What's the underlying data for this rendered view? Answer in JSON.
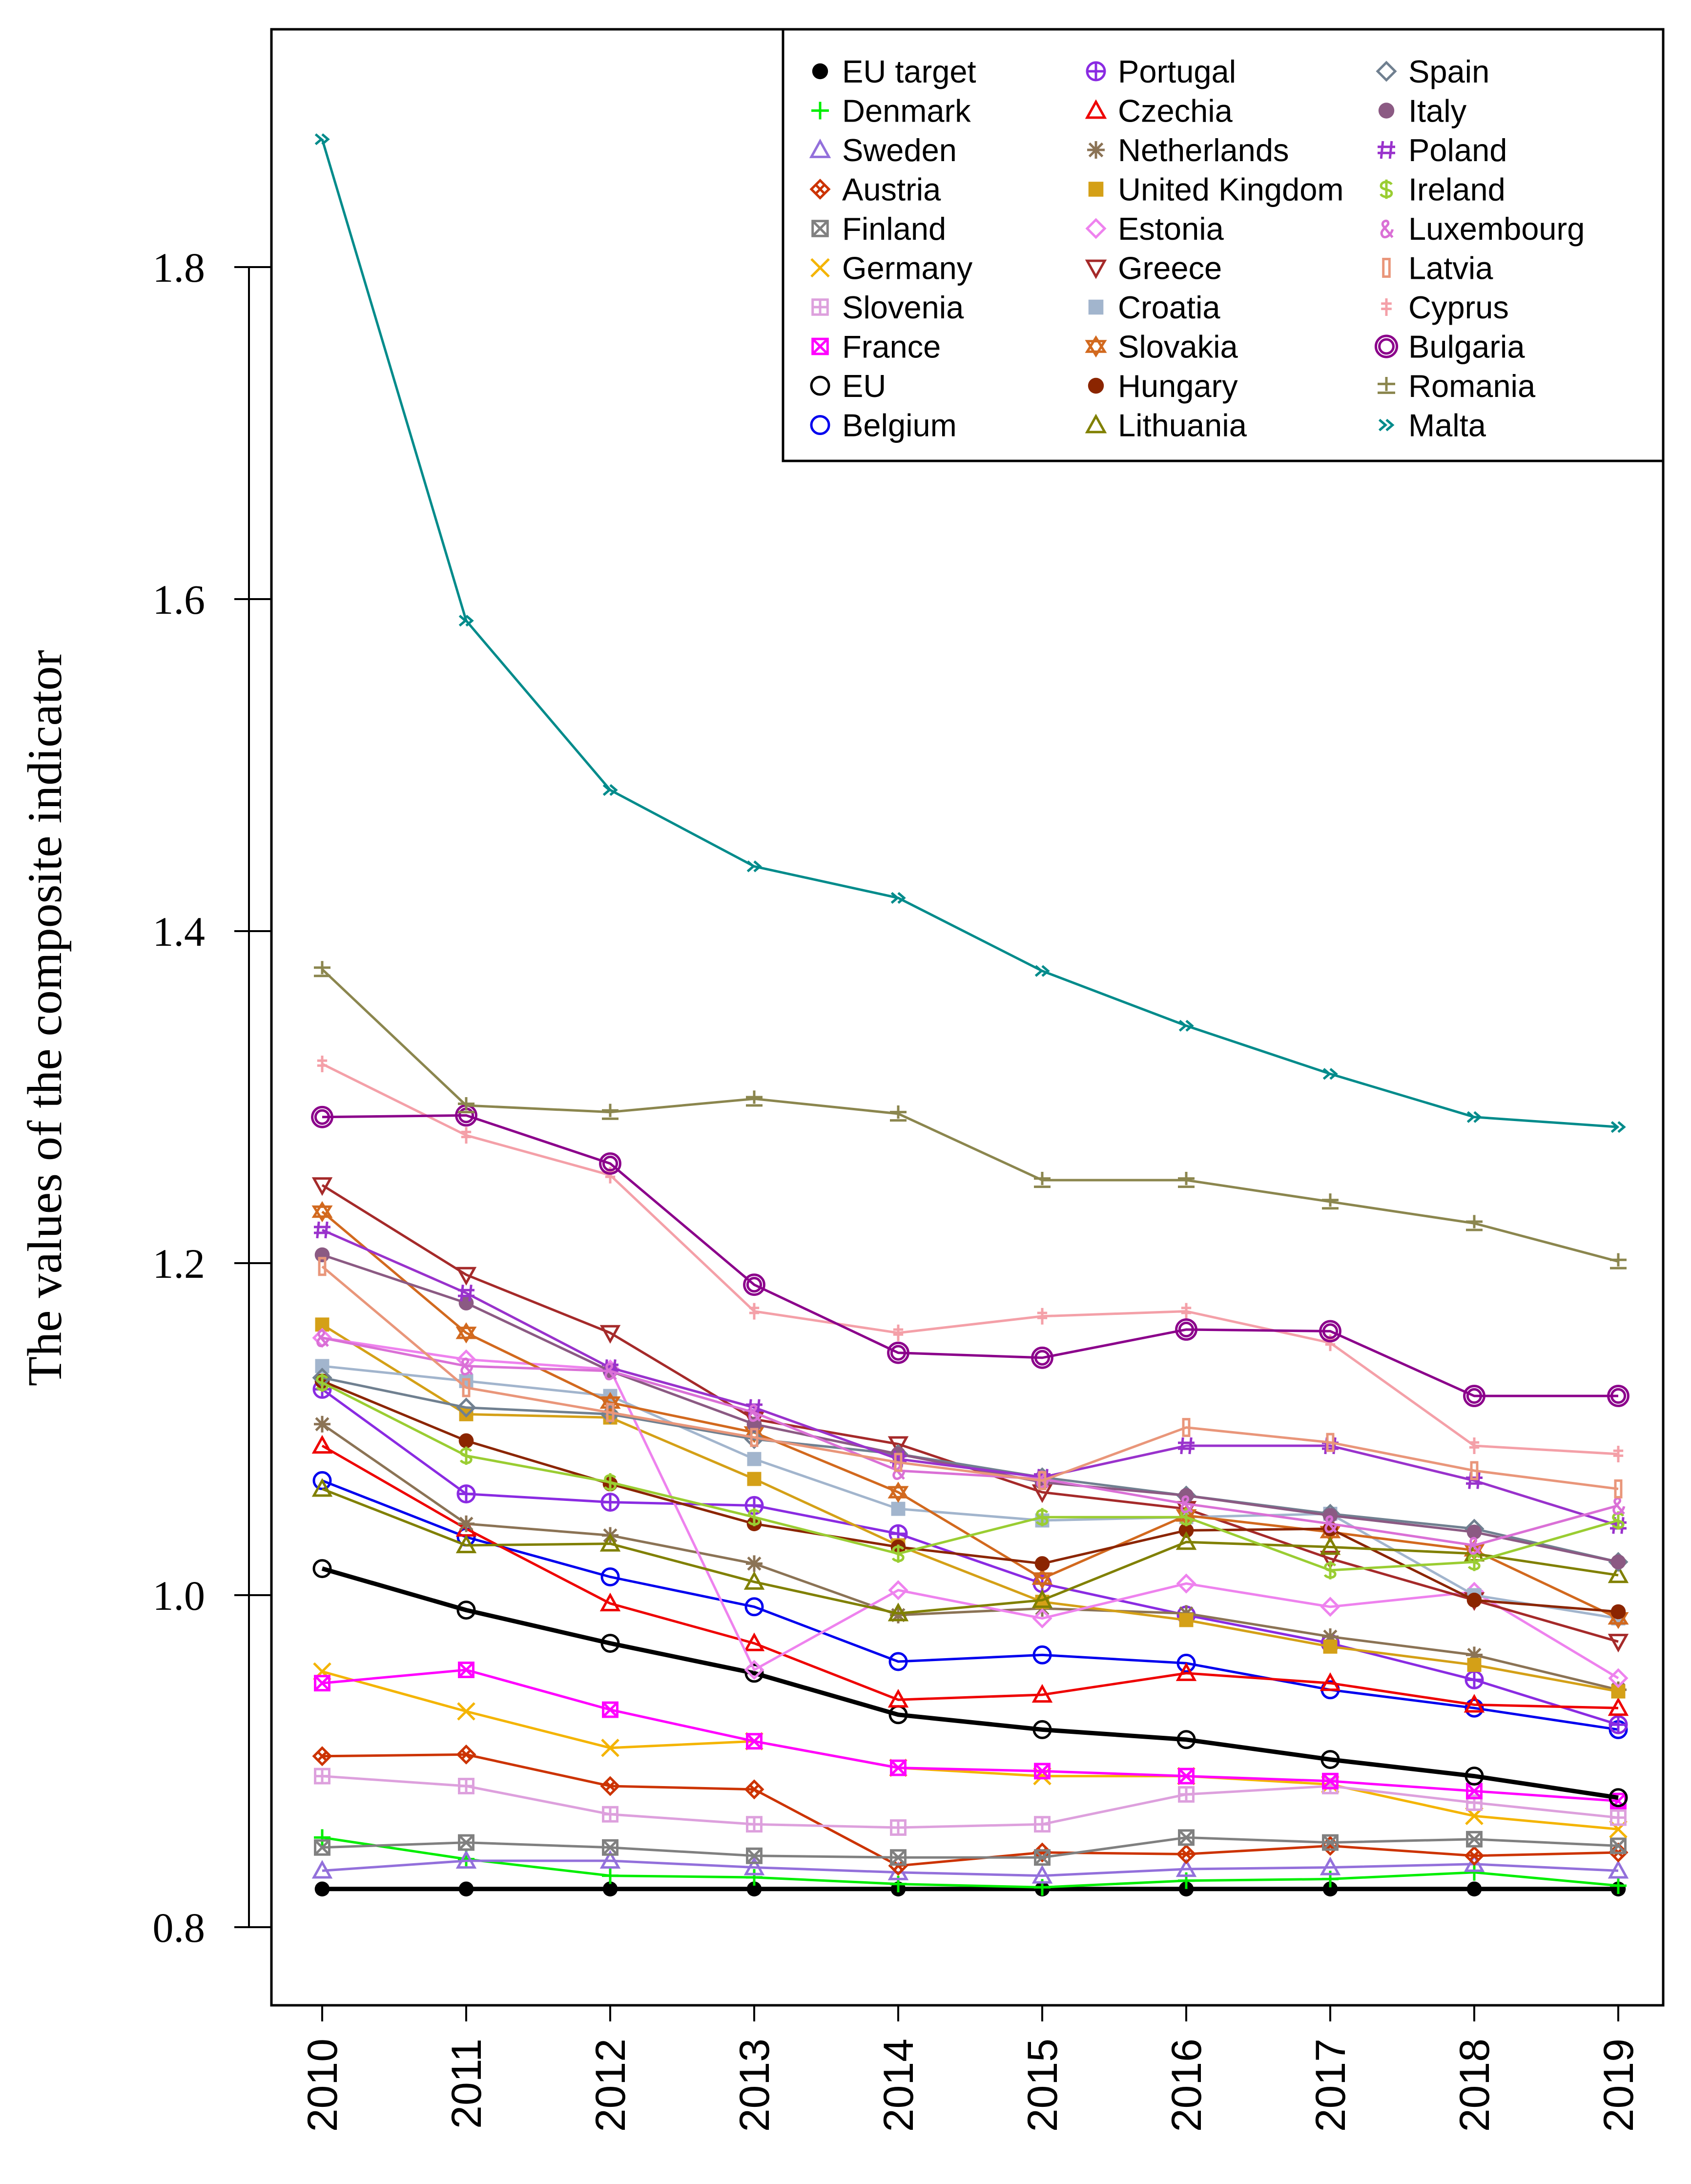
{
  "chart_data": {
    "type": "line",
    "ylabel": "The values of the composite indicator",
    "xlabel": "",
    "x": [
      2010,
      2011,
      2012,
      2013,
      2014,
      2015,
      2016,
      2017,
      2018,
      2019
    ],
    "ylim": [
      0.76,
      1.95
    ],
    "yticks": [
      "0.8",
      "1.0",
      "1.2",
      "1.4",
      "1.6",
      "1.8"
    ],
    "legend_position": "top-right",
    "series": [
      {
        "name": "EU target",
        "color": "#000000",
        "values": [
          0.823,
          0.823,
          0.823,
          0.823,
          0.823,
          0.823,
          0.823,
          0.823,
          0.823,
          0.823
        ]
      },
      {
        "name": "Denmark",
        "color": "#00ee00",
        "values": [
          0.854,
          0.841,
          0.831,
          0.83,
          0.826,
          0.824,
          0.828,
          0.829,
          0.833,
          0.825
        ]
      },
      {
        "name": "Sweden",
        "color": "#9370db",
        "values": [
          0.834,
          0.84,
          0.84,
          0.836,
          0.833,
          0.831,
          0.835,
          0.836,
          0.838,
          0.834
        ]
      },
      {
        "name": "Austria",
        "color": "#cc3300",
        "values": [
          0.903,
          0.904,
          0.885,
          0.883,
          0.837,
          0.845,
          0.844,
          0.849,
          0.843,
          0.845
        ]
      },
      {
        "name": "Finland",
        "color": "#808080",
        "values": [
          0.848,
          0.851,
          0.848,
          0.843,
          0.842,
          0.842,
          0.854,
          0.851,
          0.853,
          0.849
        ]
      },
      {
        "name": "Germany",
        "color": "#f4b400",
        "values": [
          0.954,
          0.93,
          0.908,
          0.912,
          0.896,
          0.891,
          0.891,
          0.886,
          0.867,
          0.859
        ]
      },
      {
        "name": "Slovenia",
        "color": "#dda0dd",
        "values": [
          0.891,
          0.885,
          0.868,
          0.862,
          0.86,
          0.862,
          0.88,
          0.885,
          0.875,
          0.866
        ]
      },
      {
        "name": "France",
        "color": "#ff00ff",
        "values": [
          0.947,
          0.955,
          0.931,
          0.912,
          0.896,
          0.894,
          0.891,
          0.888,
          0.882,
          0.876
        ]
      },
      {
        "name": "EU",
        "color": "#000000",
        "values": [
          1.016,
          0.991,
          0.971,
          0.953,
          0.928,
          0.919,
          0.913,
          0.901,
          0.891,
          0.878
        ]
      },
      {
        "name": "Belgium",
        "color": "#0000ee",
        "values": [
          1.069,
          1.035,
          1.011,
          0.993,
          0.96,
          0.964,
          0.959,
          0.943,
          0.932,
          0.919
        ]
      },
      {
        "name": "Portugal",
        "color": "#8a2be2",
        "values": [
          1.124,
          1.061,
          1.056,
          1.054,
          1.037,
          1.007,
          0.988,
          0.971,
          0.949,
          0.922
        ]
      },
      {
        "name": "Czechia",
        "color": "#ee0000",
        "values": [
          1.09,
          1.04,
          0.995,
          0.971,
          0.937,
          0.94,
          0.953,
          0.947,
          0.934,
          0.932
        ]
      },
      {
        "name": "Netherlands",
        "color": "#8b7355",
        "values": [
          1.103,
          1.043,
          1.036,
          1.019,
          0.988,
          0.992,
          0.989,
          0.975,
          0.964,
          0.943
        ]
      },
      {
        "name": "United Kingdom",
        "color": "#d4a017",
        "values": [
          1.163,
          1.109,
          1.107,
          1.07,
          1.03,
          0.996,
          0.985,
          0.969,
          0.958,
          0.942
        ]
      },
      {
        "name": "Estonia",
        "color": "#ee82ee",
        "values": [
          1.155,
          1.142,
          1.136,
          0.955,
          1.003,
          0.986,
          1.007,
          0.993,
          1.002,
          0.95
        ]
      },
      {
        "name": "Greece",
        "color": "#a52a2a",
        "values": [
          1.247,
          1.193,
          1.158,
          1.106,
          1.091,
          1.062,
          1.052,
          1.022,
          0.997,
          0.972
        ]
      },
      {
        "name": "Croatia",
        "color": "#a2b5cd",
        "values": [
          1.138,
          1.129,
          1.12,
          1.082,
          1.052,
          1.045,
          1.047,
          1.049,
          1.0,
          0.986
        ]
      },
      {
        "name": "Slovakia",
        "color": "#d2691e",
        "values": [
          1.231,
          1.158,
          1.116,
          1.098,
          1.062,
          1.01,
          1.048,
          1.038,
          1.027,
          0.986
        ]
      },
      {
        "name": "Hungary",
        "color": "#8b2500",
        "values": [
          1.129,
          1.093,
          1.067,
          1.043,
          1.029,
          1.019,
          1.039,
          1.04,
          0.997,
          0.99
        ]
      },
      {
        "name": "Lithuania",
        "color": "#808000",
        "values": [
          1.064,
          1.03,
          1.031,
          1.008,
          0.989,
          0.997,
          1.032,
          1.029,
          1.025,
          1.012
        ]
      },
      {
        "name": "Spain",
        "color": "#708090",
        "values": [
          1.131,
          1.113,
          1.109,
          1.094,
          1.085,
          1.071,
          1.06,
          1.049,
          1.04,
          1.02
        ]
      },
      {
        "name": "Italy",
        "color": "#8b5a83",
        "values": [
          1.205,
          1.176,
          1.135,
          1.103,
          1.085,
          1.068,
          1.06,
          1.048,
          1.038,
          1.02
        ]
      },
      {
        "name": "Poland",
        "color": "#9932cc",
        "values": [
          1.22,
          1.182,
          1.137,
          1.113,
          1.082,
          1.071,
          1.09,
          1.09,
          1.069,
          1.042
        ]
      },
      {
        "name": "Ireland",
        "color": "#9acd32",
        "values": [
          1.128,
          1.084,
          1.068,
          1.047,
          1.025,
          1.047,
          1.047,
          1.015,
          1.02,
          1.045
        ]
      },
      {
        "name": "Luxembourg",
        "color": "#da70d6",
        "values": [
          1.155,
          1.138,
          1.135,
          1.11,
          1.075,
          1.07,
          1.055,
          1.043,
          1.03,
          1.054
        ]
      },
      {
        "name": "Latvia",
        "color": "#e9967a",
        "values": [
          1.198,
          1.125,
          1.11,
          1.095,
          1.08,
          1.069,
          1.101,
          1.092,
          1.075,
          1.064
        ]
      },
      {
        "name": "Cyprus",
        "color": "#f4a0a8",
        "values": [
          1.32,
          1.277,
          1.253,
          1.171,
          1.158,
          1.168,
          1.171,
          1.152,
          1.09,
          1.085
        ]
      },
      {
        "name": "Bulgaria",
        "color": "#8b008b",
        "values": [
          1.288,
          1.289,
          1.26,
          1.187,
          1.146,
          1.143,
          1.16,
          1.159,
          1.12,
          1.12
        ]
      },
      {
        "name": "Romania",
        "color": "#8b864e",
        "values": [
          1.377,
          1.295,
          1.291,
          1.299,
          1.29,
          1.25,
          1.25,
          1.237,
          1.224,
          1.201
        ]
      },
      {
        "name": "Malta",
        "color": "#008b8b",
        "values": [
          1.877,
          1.587,
          1.485,
          1.439,
          1.42,
          1.376,
          1.343,
          1.314,
          1.288,
          1.282
        ]
      }
    ]
  }
}
